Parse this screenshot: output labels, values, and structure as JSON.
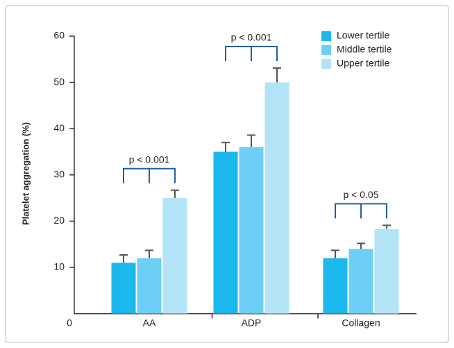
{
  "chart_data": {
    "type": "bar",
    "ylabel": "Platelet aggregation (%)",
    "categories": [
      "AA",
      "ADP",
      "Collagen"
    ],
    "series": [
      {
        "name": "Lower tertile",
        "color": "#1ab8ed",
        "values": [
          11,
          35,
          12
        ],
        "errors": [
          1.7,
          2,
          1.7
        ]
      },
      {
        "name": "Middle tertile",
        "color": "#6dcff6",
        "values": [
          12,
          36,
          14
        ],
        "errors": [
          1.7,
          2.6,
          1.2
        ]
      },
      {
        "name": "Upper tertile",
        "color": "#b3e3f7",
        "values": [
          25,
          50,
          18.3
        ],
        "errors": [
          1.7,
          3.1,
          0.8
        ]
      }
    ],
    "annotations": [
      "p < 0.001",
      "p < 0.001",
      "p < 0.05"
    ],
    "ylim": [
      0,
      60
    ],
    "yticks": [
      0,
      10,
      20,
      30,
      40,
      50,
      60
    ],
    "legend": "upper-right"
  }
}
